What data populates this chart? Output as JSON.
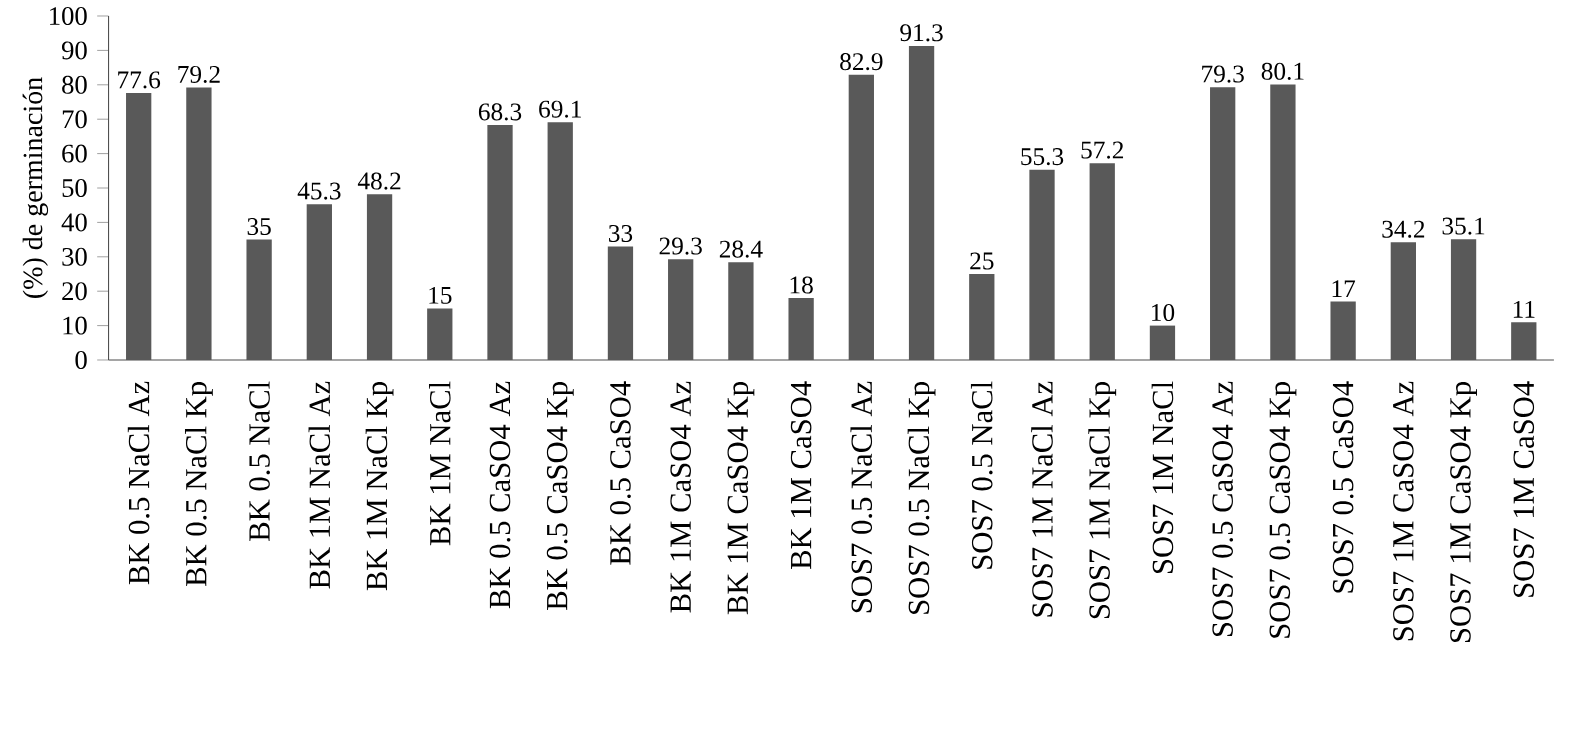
{
  "chart_data": {
    "type": "bar",
    "ylabel": "(%) de germinación",
    "categories": [
      "BK 0.5 NaCl Az",
      "BK 0.5 NaCl Kp",
      "BK 0.5 NaCl",
      "BK 1M NaCl Az",
      "BK 1M NaCl Kp",
      "BK 1M NaCl",
      "BK 0.5 CaSO4 Az",
      "BK 0.5 CaSO4 Kp",
      "BK 0.5 CaSO4",
      "BK 1M CaSO4 Az",
      "BK 1M CaSO4 Kp",
      "BK 1M CaSO4",
      "SOS7 0.5 NaCl Az",
      "SOS7 0.5 NaCl Kp",
      "SOS7 0.5 NaCl",
      "SOS7 1M NaCl Az",
      "SOS7 1M NaCl Kp",
      "SOS7 1M NaCl",
      "SOS7 0.5 CaSO4 Az",
      "SOS7 0.5 CaSO4 Kp",
      "SOS7 0.5 CaSO4",
      "SOS7 1M CaSO4 Az",
      "SOS7 1M CaSO4 Kp",
      "SOS7 1M CaSO4"
    ],
    "values": [
      77.6,
      79.2,
      35,
      45.3,
      48.2,
      15,
      68.3,
      69.1,
      33,
      29.3,
      28.4,
      18,
      82.9,
      91.3,
      25,
      55.3,
      57.2,
      10,
      79.3,
      80.1,
      17,
      34.2,
      35.1,
      11
    ],
    "value_labels": [
      "77.6",
      "79.2",
      "35",
      "45.3",
      "48.2",
      "15",
      "68.3",
      "69.1",
      "33",
      "29.3",
      "28.4",
      "18",
      "82.9",
      "91.3",
      "25",
      "55.3",
      "57.2",
      "10",
      "79.3",
      "80.1",
      "17",
      "34.2",
      "35.1",
      "11"
    ],
    "color": "#595959",
    "ylim": [
      0,
      100
    ],
    "yticks": [
      0,
      10,
      20,
      30,
      40,
      50,
      60,
      70,
      80,
      90,
      100
    ]
  }
}
